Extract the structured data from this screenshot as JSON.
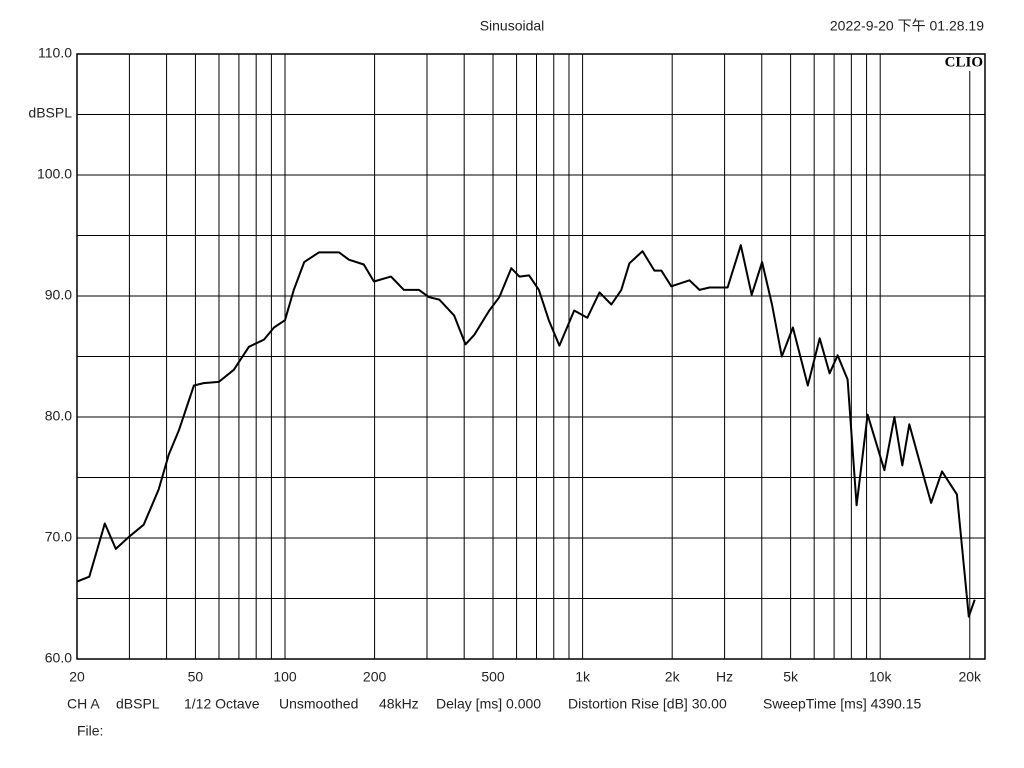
{
  "chart_data": {
    "type": "line",
    "title": "Sinusoidal",
    "timestamp": "2022-9-20 下午 01.28.19",
    "logo": "CLIO",
    "ylabel": "dBSPL",
    "footer": [
      "CH A",
      "dBSPL",
      "1/12 Octave",
      "Unsmoothed",
      "48kHz",
      "Delay [ms] 0.000",
      "Distortion Rise [dB] 30.00",
      "SweepTime [ms] 4390.15"
    ],
    "file_label": "File:",
    "xscale": "log",
    "xlim": [
      20,
      22500
    ],
    "xticks": [
      20,
      50,
      100,
      200,
      500,
      {
        "value": 1000,
        "label": "1k"
      },
      {
        "value": 2000,
        "label": "2k"
      },
      {
        "value": 3000,
        "label": "Hz"
      },
      {
        "value": 5000,
        "label": "5k"
      },
      {
        "value": 10000,
        "label": "10k"
      },
      {
        "value": 20000,
        "label": "20k"
      }
    ],
    "xminor": [
      30,
      40,
      60,
      70,
      80,
      90,
      300,
      400,
      600,
      700,
      800,
      900,
      4000,
      6000,
      7000,
      8000,
      9000
    ],
    "ylim": [
      60,
      110
    ],
    "yticks": [
      {
        "value": 60,
        "label": "60.0"
      },
      {
        "value": 70,
        "label": "70.0"
      },
      {
        "value": 80,
        "label": "80.0"
      },
      {
        "value": 90,
        "label": "90.0"
      },
      {
        "value": 100,
        "label": "100.0"
      },
      {
        "value": 110,
        "label": "110.0"
      }
    ],
    "yminor": [
      65,
      75,
      85,
      95,
      105
    ],
    "grid": true,
    "color": "#000000",
    "x": [
      20,
      22,
      24.8,
      27,
      29.9,
      33.5,
      37.6,
      40.7,
      44,
      49.4,
      53.3,
      59.9,
      67.3,
      75.6,
      85,
      91.8,
      100,
      107,
      116,
      130,
      152,
      164,
      184,
      199,
      227,
      251,
      282,
      305,
      330,
      370,
      404,
      433,
      486,
      525,
      576,
      613,
      661,
      713,
      770,
      836,
      937,
      1037,
      1140,
      1250,
      1349,
      1436,
      1590,
      1743,
      1840,
      1987,
      2286,
      2470,
      2670,
      3070,
      3400,
      3700,
      4010,
      4330,
      4670,
      5090,
      5710,
      6260,
      6760,
      7190,
      7770,
      8330,
      9070,
      10330,
      11160,
      11870,
      12530,
      13530,
      14830,
      16130,
      18100,
      19850,
      20780
    ],
    "values": [
      66.4,
      66.8,
      71.2,
      69.1,
      70.1,
      71.1,
      74.0,
      76.9,
      78.9,
      82.6,
      82.8,
      82.9,
      83.9,
      85.8,
      86.4,
      87.4,
      88.0,
      90.5,
      92.8,
      93.6,
      93.6,
      93.0,
      92.6,
      91.2,
      91.6,
      90.5,
      90.5,
      89.9,
      89.7,
      88.4,
      86.0,
      86.8,
      88.8,
      89.9,
      92.3,
      91.6,
      91.7,
      90.5,
      88.0,
      85.9,
      88.8,
      88.2,
      90.3,
      89.3,
      90.5,
      92.7,
      93.7,
      92.1,
      92.1,
      90.8,
      91.3,
      90.5,
      90.7,
      90.7,
      94.2,
      90.1,
      92.8,
      89.3,
      85.0,
      87.4,
      82.6,
      86.5,
      83.6,
      85.1,
      83.1,
      72.7,
      80.2,
      75.6,
      80.0,
      76.0,
      79.4,
      76.4,
      72.9,
      75.5,
      73.6,
      63.5,
      64.9
    ]
  }
}
